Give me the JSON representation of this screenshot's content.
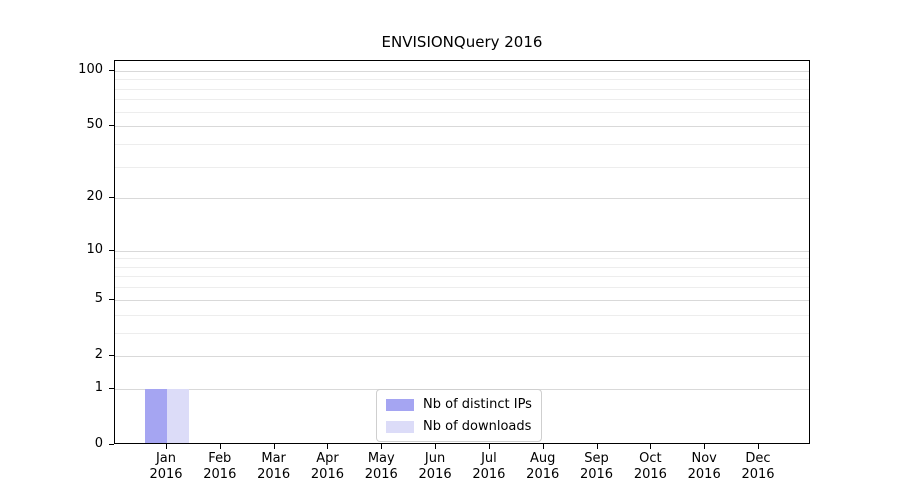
{
  "figure": {
    "background": "#ffffff",
    "text_color": "#000000",
    "spine_color": "#000000"
  },
  "chart_data": {
    "type": "bar",
    "title": "ENVISIONQuery 2016",
    "categories": [
      "Jan 2016",
      "Feb 2016",
      "Mar 2016",
      "Apr 2016",
      "May 2016",
      "Jun 2016",
      "Jul 2016",
      "Aug 2016",
      "Sep 2016",
      "Oct 2016",
      "Nov 2016",
      "Dec 2016"
    ],
    "series": [
      {
        "name": "Nb of distinct IPs",
        "color": "#a5a5f2",
        "values": [
          1,
          0,
          0,
          0,
          0,
          0,
          0,
          0,
          0,
          0,
          0,
          0
        ]
      },
      {
        "name": "Nb of downloads",
        "color": "#dcdcf8",
        "values": [
          1,
          0,
          0,
          0,
          0,
          0,
          0,
          0,
          0,
          0,
          0,
          0
        ]
      }
    ],
    "xlabel": "",
    "ylabel": "",
    "yscale": "log1p",
    "ylim": [
      0,
      113
    ],
    "yticks": [
      0,
      1,
      2,
      5,
      10,
      20,
      50,
      100
    ],
    "yticks_minor": [
      3,
      4,
      6,
      7,
      8,
      9,
      30,
      40,
      60,
      70,
      80,
      90
    ],
    "grid": "horizontal",
    "grid_major_color": "#d9d9d9",
    "grid_minor_color": "#ededed",
    "legend_position": "lower center"
  }
}
